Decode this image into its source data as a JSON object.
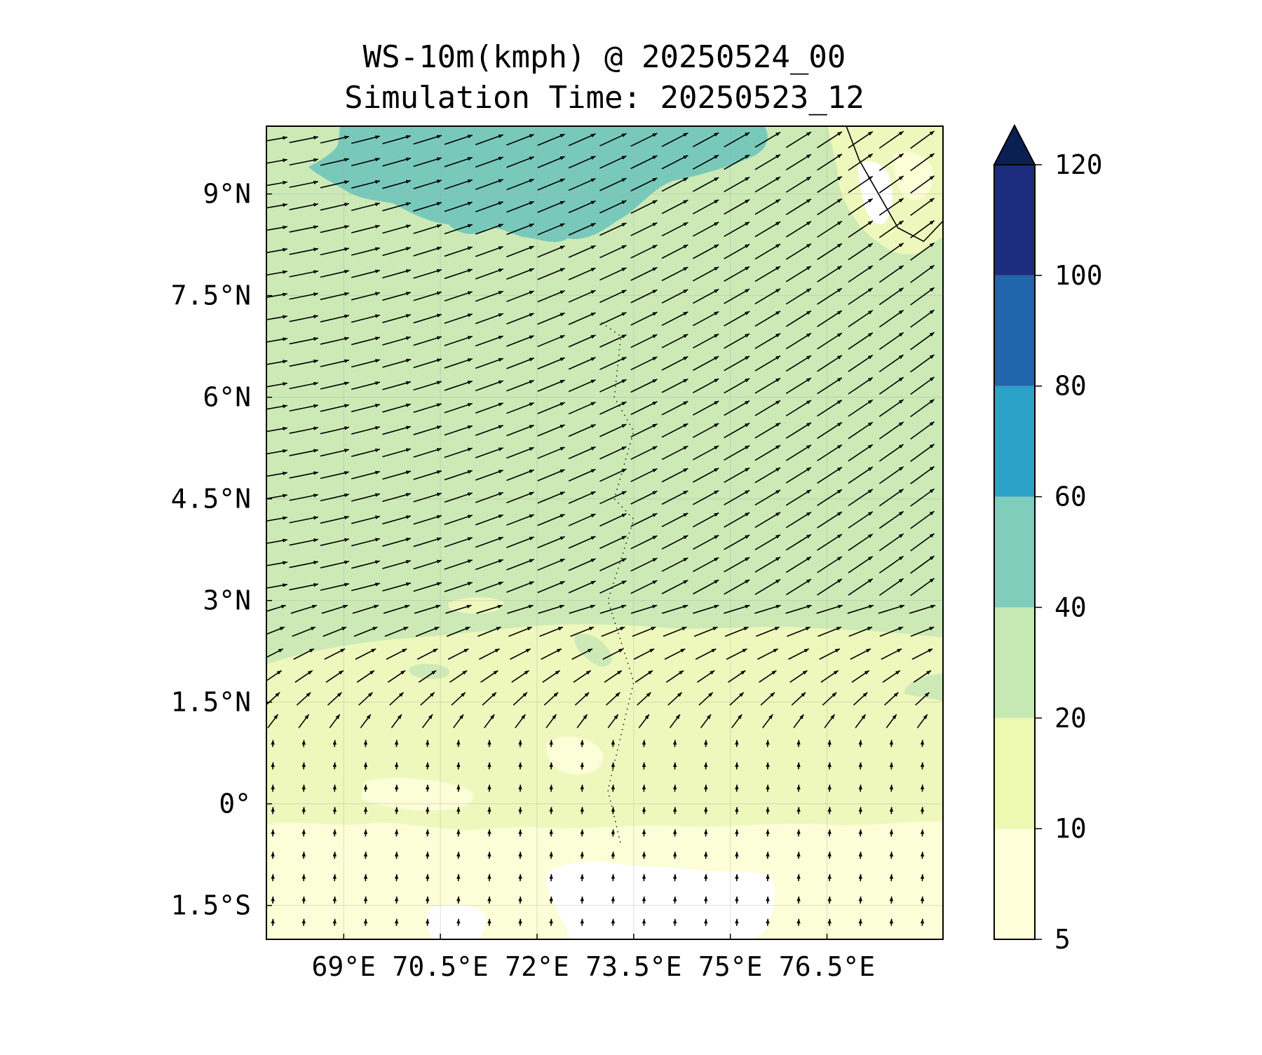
{
  "title": {
    "line1": "WS-10m(kmph) @ 20250524_00",
    "line2": "Simulation Time: 20250523_12"
  },
  "map": {
    "lon_range": [
      67.8,
      78.3
    ],
    "lat_range": [
      -2.0,
      10.0
    ],
    "x_ticks": [
      {
        "value": 69.0,
        "label": "69°E"
      },
      {
        "value": 70.5,
        "label": "70.5°E"
      },
      {
        "value": 72.0,
        "label": "72°E"
      },
      {
        "value": 73.5,
        "label": "73.5°E"
      },
      {
        "value": 75.0,
        "label": "75°E"
      },
      {
        "value": 76.5,
        "label": "76.5°E"
      }
    ],
    "y_ticks": [
      {
        "value": 9.0,
        "label": "9°N"
      },
      {
        "value": 7.5,
        "label": "7.5°N"
      },
      {
        "value": 6.0,
        "label": "6°N"
      },
      {
        "value": 4.5,
        "label": "4.5°N"
      },
      {
        "value": 3.0,
        "label": "3°N"
      },
      {
        "value": 1.5,
        "label": "1.5°N"
      },
      {
        "value": 0.0,
        "label": "0°"
      },
      {
        "value": -1.5,
        "label": "1.5°S"
      }
    ],
    "gridlines": true,
    "regions": [
      {
        "label": "India coastline",
        "coords": [
          [
            76.8,
            10.0
          ],
          [
            77.0,
            9.5
          ],
          [
            77.3,
            9.0
          ],
          [
            77.6,
            8.5
          ],
          [
            78.0,
            8.3
          ],
          [
            78.3,
            8.6
          ]
        ]
      },
      {
        "label": "Maldives atolls",
        "coords": [
          [
            73.0,
            7.1
          ],
          [
            73.3,
            6.9
          ],
          [
            73.2,
            6.0
          ],
          [
            73.5,
            5.5
          ],
          [
            73.2,
            4.5
          ],
          [
            73.5,
            4.2
          ],
          [
            73.1,
            3.0
          ],
          [
            73.4,
            2.1
          ],
          [
            73.5,
            1.8
          ],
          [
            73.1,
            0.2
          ],
          [
            73.3,
            -0.6
          ]
        ]
      }
    ]
  },
  "colorbar": {
    "levels": [
      5,
      10,
      20,
      40,
      60,
      80,
      100,
      120
    ],
    "tick_labels": [
      "5",
      "10",
      "20",
      "40",
      "60",
      "80",
      "100",
      "120"
    ],
    "colors": [
      "#ffffd9",
      "#edf8b1",
      "#c7e9b4",
      "#7fcdbb",
      "#2ca2c8",
      "#2166ac",
      "#1d2c7e"
    ],
    "extend_color": "#0c1f55"
  },
  "chart_data": {
    "type": "heatmap",
    "title": "WS-10m(kmph) @ 20250524_00",
    "subtitle": "Simulation Time: 20250523_12",
    "variable": "10 m wind speed",
    "units": "kmph",
    "xlim": [
      67.8,
      78.3
    ],
    "ylim": [
      -2.0,
      10.0
    ],
    "color_levels": [
      5,
      10,
      20,
      40,
      60,
      80,
      100,
      120
    ],
    "wind_speed_zones": [
      {
        "region": "north of ~8.5°N, 68.5°E–75.0°E",
        "range_kmph": [
          40,
          60
        ]
      },
      {
        "region": "2.5°N–8.5°N",
        "range_kmph": [
          20,
          40
        ]
      },
      {
        "region": "0°–2.5°N",
        "range_kmph": [
          10,
          20
        ]
      },
      {
        "region": "south of 0°",
        "range_kmph": [
          5,
          10
        ]
      }
    ],
    "wind_vectors": {
      "north_of_3N": "westerly to west-southwesterly, strong",
      "south_of_1N": "southerly, weak"
    }
  }
}
